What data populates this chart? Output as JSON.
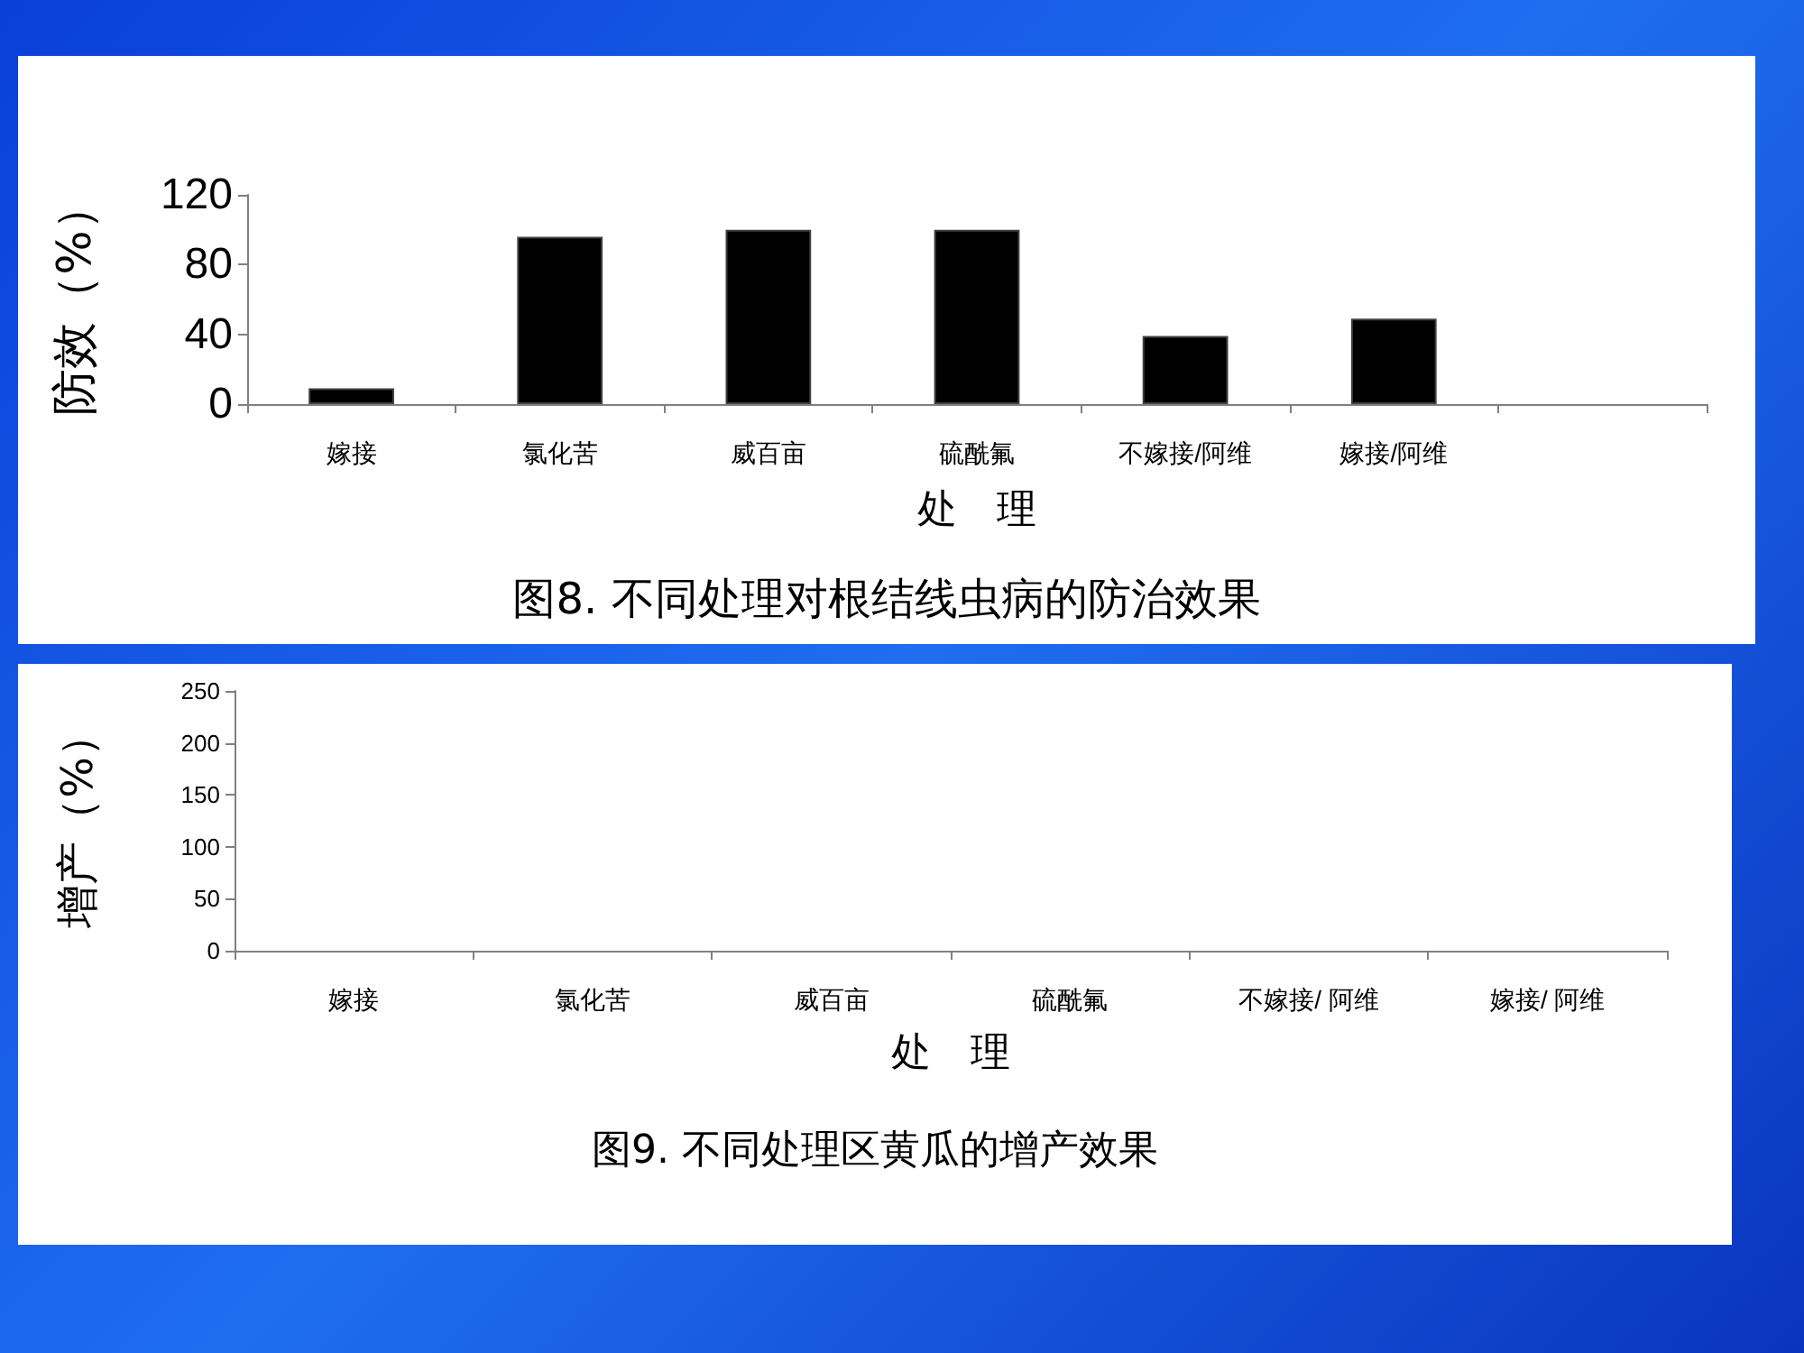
{
  "chart_data": [
    {
      "type": "bar",
      "title": "图8. 不同处理对根结线虫病的防治效果",
      "xlabel": "处　理",
      "ylabel": "防效（%）",
      "categories": [
        "嫁接",
        "氯化苦",
        "威百亩",
        "硫酰氟",
        "不嫁接/阿维",
        "嫁接/阿维",
        null
      ],
      "values": [
        9,
        96,
        100,
        100,
        39,
        49,
        null
      ],
      "color": "#000000",
      "ylim": [
        0,
        120
      ],
      "yticks": [
        0,
        40,
        80,
        120
      ]
    },
    {
      "type": "bar",
      "title": "图9. 不同处理区黄瓜的增产效果",
      "xlabel": "处　理",
      "ylabel": "增产（%）",
      "categories": [
        "嫁接",
        "氯化苦",
        "威百亩",
        "硫酰氟",
        "不嫁接/ 阿维",
        "嫁接/ 阿维"
      ],
      "values": [
        null,
        null,
        null,
        null,
        null,
        null
      ],
      "color": "#000000",
      "ylim": [
        0,
        250
      ],
      "yticks": [
        0,
        50,
        100,
        150,
        200,
        250
      ]
    }
  ]
}
